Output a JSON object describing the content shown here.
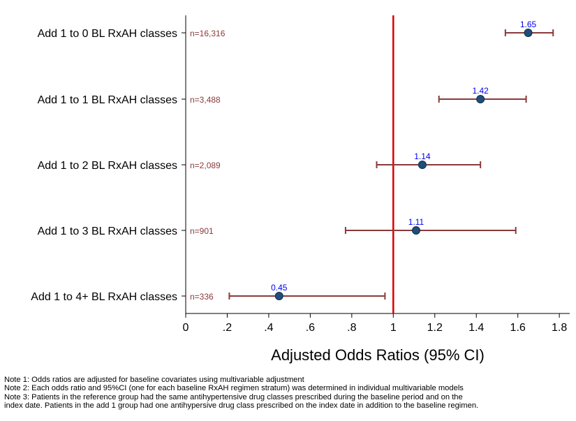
{
  "chart_data": {
    "type": "forest",
    "xlabel": "Adjusted Odds Ratios (95% CI)",
    "xlim": [
      0,
      1.85
    ],
    "xticks": [
      0,
      0.2,
      0.4,
      0.6,
      0.8,
      1,
      1.2,
      1.4,
      1.6,
      1.8
    ],
    "xtick_labels": [
      "0",
      ".2",
      ".4",
      ".6",
      ".8",
      "1",
      "1.2",
      "1.4",
      "1.6",
      "1.8"
    ],
    "reference_line": 1,
    "rows": [
      {
        "label": "Add 1 to 0 BL RxAH classes",
        "n": "n=16,316",
        "or": 1.65,
        "lo": 1.54,
        "hi": 1.77,
        "or_label": "1.65"
      },
      {
        "label": "Add 1 to 1 BL RxAH classes",
        "n": "n=3,488",
        "or": 1.42,
        "lo": 1.22,
        "hi": 1.64,
        "or_label": "1.42"
      },
      {
        "label": "Add 1 to 2 BL RxAH classes",
        "n": "n=2,089",
        "or": 1.14,
        "lo": 0.92,
        "hi": 1.42,
        "or_label": "1.14"
      },
      {
        "label": "Add 1 to 3 BL RxAH classes",
        "n": "n=901",
        "or": 1.11,
        "lo": 0.77,
        "hi": 1.59,
        "or_label": "1.11"
      },
      {
        "label": "Add 1 to 4+ BL RxAH classes",
        "n": "n=336",
        "or": 0.45,
        "lo": 0.21,
        "hi": 0.96,
        "or_label": "0.45"
      }
    ],
    "colors": {
      "ci": "#8b3a3a",
      "point": "#1f4e79",
      "or_label": "#0000ee",
      "n_label": "#8b3a3a",
      "ref": "#dd0000"
    }
  },
  "notes": [
    "Note 1: Odds ratios are adjusted for baseline covariates using multivariable adjustment",
    "Note 2: Each odds ratio and 95%CI (one for each baseline RxAH regimen stratum) was determined in individual multivariable models",
    "Note 3: Patients in the reference group had the same antihypertensive drug classes prescribed during the baseline period and on the",
    "index date. Patients in the add 1 group had one antihypersive drug class prescribed on the index date in addition to the baseline regimen."
  ]
}
